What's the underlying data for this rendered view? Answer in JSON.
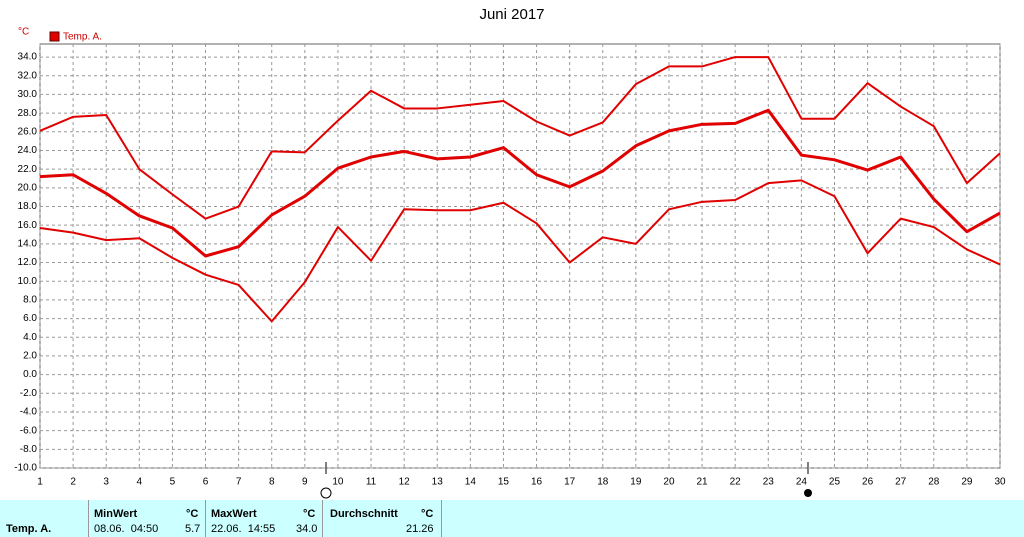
{
  "chart_data": {
    "type": "line",
    "title": "Juni 2017",
    "y_unit": "°C",
    "x": [
      1,
      2,
      3,
      4,
      5,
      6,
      7,
      8,
      9,
      10,
      11,
      12,
      13,
      14,
      15,
      16,
      17,
      18,
      19,
      20,
      21,
      22,
      23,
      24,
      25,
      26,
      27,
      28,
      29,
      30
    ],
    "xlim": [
      1,
      30
    ],
    "xticks": [
      1,
      2,
      3,
      4,
      5,
      6,
      7,
      8,
      9,
      10,
      11,
      12,
      13,
      14,
      15,
      16,
      17,
      18,
      19,
      20,
      21,
      22,
      23,
      24,
      25,
      26,
      27,
      28,
      29,
      30
    ],
    "ylim": [
      -10,
      35.4
    ],
    "yticks": [
      {
        "value": 34,
        "label": "34.0"
      },
      {
        "value": 32,
        "label": "32.0"
      },
      {
        "value": 30,
        "label": "30.0"
      },
      {
        "value": 28,
        "label": "28.0"
      },
      {
        "value": 26,
        "label": "26.0"
      },
      {
        "value": 24,
        "label": "24.0"
      },
      {
        "value": 22,
        "label": "22.0"
      },
      {
        "value": 20,
        "label": "20.0"
      },
      {
        "value": 18,
        "label": "18.0"
      },
      {
        "value": 16,
        "label": "16.0"
      },
      {
        "value": 14,
        "label": "14.0"
      },
      {
        "value": 12,
        "label": "12.0"
      },
      {
        "value": 10,
        "label": "10.0"
      },
      {
        "value": 8,
        "label": "8.0"
      },
      {
        "value": 6,
        "label": "6.0"
      },
      {
        "value": 4,
        "label": "4.0"
      },
      {
        "value": 2,
        "label": "2.0"
      },
      {
        "value": 0,
        "label": "0.0"
      },
      {
        "value": -2,
        "label": "-2.0"
      },
      {
        "value": -4,
        "label": "-4.0"
      },
      {
        "value": -6,
        "label": "-6.0"
      },
      {
        "value": -8,
        "label": "-8.0"
      },
      {
        "value": -10,
        "label": "-10.0"
      }
    ],
    "grid": true,
    "series": [
      {
        "name": "Temp. A.",
        "color": "#e00000",
        "width": 3,
        "values": [
          21.2,
          21.4,
          19.4,
          17.0,
          15.7,
          12.7,
          13.7,
          17.1,
          19.1,
          22.1,
          23.3,
          23.9,
          23.1,
          23.3,
          24.3,
          21.4,
          20.1,
          21.8,
          24.5,
          26.1,
          26.8,
          26.9,
          28.3,
          23.5,
          23.0,
          21.9,
          23.3,
          18.8,
          15.3,
          17.3
        ]
      },
      {
        "color": "#e00000",
        "width": 2,
        "values": [
          26.1,
          27.6,
          27.8,
          22.0,
          19.3,
          16.7,
          18.0,
          23.9,
          23.8,
          27.2,
          30.4,
          28.5,
          28.5,
          28.9,
          29.3,
          27.1,
          25.6,
          27.0,
          31.1,
          33.0,
          33.0,
          34.0,
          34.0,
          27.4,
          27.4,
          31.2,
          28.7,
          26.6,
          20.5,
          23.7
        ]
      },
      {
        "color": "#e00000",
        "width": 2,
        "values": [
          15.7,
          15.2,
          14.4,
          14.6,
          12.5,
          10.7,
          9.6,
          5.7,
          9.9,
          15.8,
          12.2,
          17.7,
          17.6,
          17.6,
          18.4,
          16.2,
          12.0,
          14.7,
          14.0,
          17.7,
          18.5,
          18.7,
          20.5,
          20.8,
          19.1,
          13.0,
          16.7,
          15.8,
          13.4,
          11.8
        ]
      }
    ]
  },
  "stats": {
    "row_label": "Temp. A.",
    "min": {
      "header": "MinWert",
      "unit": "°C",
      "time": "08.06.  04:50",
      "value": "5.7"
    },
    "max": {
      "header": "MaxWert",
      "unit": "°C",
      "time": "22.06.  14:55",
      "value": "34.0"
    },
    "avg": {
      "header": "Durchschnitt",
      "unit": "°C",
      "value": "21.26"
    }
  }
}
